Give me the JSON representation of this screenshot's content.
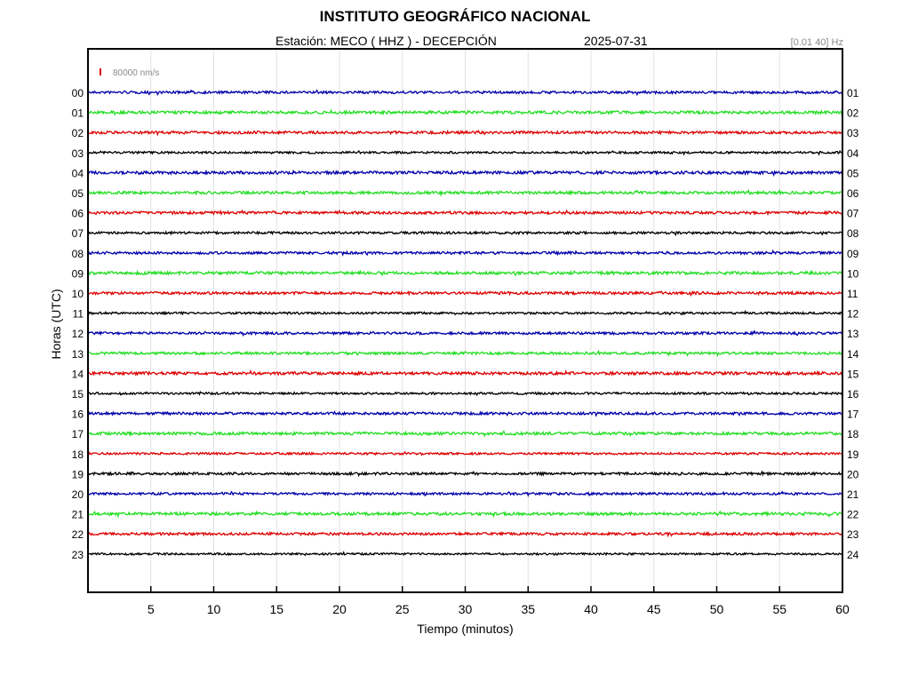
{
  "header": {
    "title": "INSTITUTO GEOGRÁFICO NACIONAL",
    "station_text": "Estación:  MECO ( HHZ ) - DECEPCIÓN",
    "date": "2025-07-31",
    "filter_text": "[0.01 40] Hz",
    "scale_text": "80000 nm/s"
  },
  "chart_data": {
    "type": "line",
    "xlabel": "Tiempo (minutos)",
    "ylabel": "Horas (UTC)",
    "xlim": [
      0,
      60
    ],
    "x_ticks": [
      5,
      10,
      15,
      20,
      25,
      30,
      35,
      40,
      45,
      50,
      55,
      60
    ],
    "y_ticks_left": [
      "00",
      "01",
      "02",
      "03",
      "04",
      "05",
      "06",
      "07",
      "08",
      "09",
      "10",
      "11",
      "12",
      "13",
      "14",
      "15",
      "16",
      "17",
      "18",
      "19",
      "20",
      "21",
      "22",
      "23"
    ],
    "y_ticks_right": [
      "01",
      "02",
      "03",
      "04",
      "05",
      "06",
      "07",
      "08",
      "09",
      "10",
      "11",
      "12",
      "13",
      "14",
      "15",
      "16",
      "17",
      "18",
      "19",
      "20",
      "21",
      "22",
      "23",
      "24"
    ],
    "grid": "vertical",
    "color_cycle": [
      "#0000aa",
      "#22dd22",
      "#dd0000",
      "#000000"
    ],
    "scale_bar_color": "#dd0000",
    "series": [
      {
        "hour": "00",
        "color": "#0000aa",
        "amplitude": 1.4
      },
      {
        "hour": "01",
        "color": "#22dd22",
        "amplitude": 1.6
      },
      {
        "hour": "02",
        "color": "#dd0000",
        "amplitude": 1.5
      },
      {
        "hour": "03",
        "color": "#000000",
        "amplitude": 1.2
      },
      {
        "hour": "04",
        "color": "#0000aa",
        "amplitude": 1.6
      },
      {
        "hour": "05",
        "color": "#22dd22",
        "amplitude": 1.5
      },
      {
        "hour": "06",
        "color": "#dd0000",
        "amplitude": 1.5
      },
      {
        "hour": "07",
        "color": "#000000",
        "amplitude": 1.3
      },
      {
        "hour": "08",
        "color": "#0000aa",
        "amplitude": 1.4
      },
      {
        "hour": "09",
        "color": "#22dd22",
        "amplitude": 1.6
      },
      {
        "hour": "10",
        "color": "#dd0000",
        "amplitude": 1.5
      },
      {
        "hour": "11",
        "color": "#000000",
        "amplitude": 1.2
      },
      {
        "hour": "12",
        "color": "#0000aa",
        "amplitude": 1.4
      },
      {
        "hour": "13",
        "color": "#22dd22",
        "amplitude": 1.4
      },
      {
        "hour": "14",
        "color": "#dd0000",
        "amplitude": 1.6
      },
      {
        "hour": "15",
        "color": "#000000",
        "amplitude": 1.2
      },
      {
        "hour": "16",
        "color": "#0000aa",
        "amplitude": 1.4
      },
      {
        "hour": "17",
        "color": "#22dd22",
        "amplitude": 1.6
      },
      {
        "hour": "18",
        "color": "#dd0000",
        "amplitude": 1.2
      },
      {
        "hour": "19",
        "color": "#000000",
        "amplitude": 1.4
      },
      {
        "hour": "20",
        "color": "#0000aa",
        "amplitude": 1.3
      },
      {
        "hour": "21",
        "color": "#22dd22",
        "amplitude": 1.6
      },
      {
        "hour": "22",
        "color": "#dd0000",
        "amplitude": 1.4
      },
      {
        "hour": "23",
        "color": "#000000",
        "amplitude": 1.1
      }
    ]
  }
}
